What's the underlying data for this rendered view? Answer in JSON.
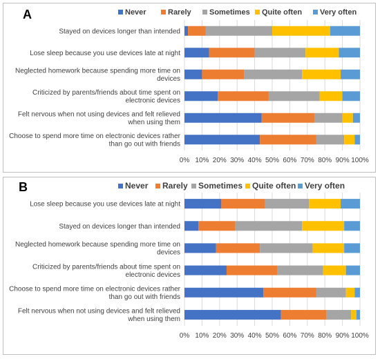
{
  "categories_legend": [
    "Never",
    "Rarely",
    "Sometimes",
    "Quite often",
    "Very often"
  ],
  "colors": {
    "never": "#4472c4",
    "rarely": "#ed7d31",
    "sometimes": "#a5a5a5",
    "quite_often": "#ffc000",
    "very_often": "#5b9bd5",
    "grid": "#d9d9d9",
    "text": "#404040"
  },
  "chart_data": [
    {
      "type": "bar",
      "orientation": "horizontal-stacked-100",
      "panel_label": "A",
      "categories": [
        "Stayed on devices longer than intended",
        "Lose sleep because you use devices late at night",
        "Neglected homework because spending more time on devices",
        "Criticized by parents/friends about time spent on electronic devices",
        "Felt nervous when not using devices and felt relieved when using them",
        "Choose to spend more time on electronic devices rather than go out with friends"
      ],
      "category_lines": [
        [
          "Stayed on devices longer than intended"
        ],
        [
          "Lose sleep because you use devices late at night"
        ],
        [
          "Neglected homework because spending more time on",
          "devices"
        ],
        [
          "Criticized by parents/friends about time spent on",
          "electronic devices"
        ],
        [
          "Felt nervous when not using devices and felt relieved",
          "when using them"
        ],
        [
          "Choose to spend more time on electronic devices rather",
          "than go out with friends"
        ]
      ],
      "series": [
        {
          "name": "Never",
          "values": [
            2,
            14,
            10,
            19,
            44,
            43
          ]
        },
        {
          "name": "Rarely",
          "values": [
            10,
            26,
            24,
            29,
            30,
            32
          ]
        },
        {
          "name": "Sometimes",
          "values": [
            38,
            29,
            33,
            29,
            16,
            16
          ]
        },
        {
          "name": "Quite often",
          "values": [
            33,
            19,
            22,
            13,
            6,
            6
          ]
        },
        {
          "name": "Very often",
          "values": [
            17,
            12,
            11,
            10,
            4,
            3
          ]
        }
      ],
      "xlim": [
        0,
        100
      ],
      "xticks": [
        "0%",
        "10%",
        "20%",
        "30%",
        "40%",
        "50%",
        "60%",
        "70%",
        "80%",
        "90%",
        "100%"
      ],
      "grid": true,
      "legend_position": "top"
    },
    {
      "type": "bar",
      "orientation": "horizontal-stacked-100",
      "panel_label": "B",
      "categories": [
        "Lose sleep because you use devices late at night",
        "Stayed on devices longer than intended",
        "Neglected homework because spending more time on devices",
        "Criticized by parents/friends about time spent on electronic devices",
        "Choose to spend more time on electronic devices rather than go out with friends",
        "Felt nervous when not using devices and felt relieved when using them"
      ],
      "category_lines": [
        [
          "Lose sleep because you use devices late at night"
        ],
        [
          "Stayed on devices longer than intended"
        ],
        [
          "Neglected homework because spending more time on",
          "devices"
        ],
        [
          "Criticized by parents/friends about time spent on",
          "electronic devices"
        ],
        [
          "Choose to spend more time on electronic devices rather",
          "than go out with friends"
        ],
        [
          "Felt nervous when not using devices and felt relieved",
          "when using them"
        ]
      ],
      "series": [
        {
          "name": "Never",
          "values": [
            21,
            8,
            18,
            24,
            45,
            55
          ]
        },
        {
          "name": "Rarely",
          "values": [
            25,
            21,
            25,
            29,
            30,
            26
          ]
        },
        {
          "name": "Sometimes",
          "values": [
            25,
            38,
            30,
            26,
            17,
            14
          ]
        },
        {
          "name": "Quite often",
          "values": [
            18,
            24,
            18,
            13,
            5,
            3
          ]
        },
        {
          "name": "Very often",
          "values": [
            11,
            9,
            9,
            8,
            3,
            2
          ]
        }
      ],
      "xlim": [
        0,
        100
      ],
      "xticks": [
        "0%",
        "10%",
        "20%",
        "30%",
        "40%",
        "50%",
        "60%",
        "70%",
        "80%",
        "90%",
        "100%"
      ],
      "grid": true,
      "legend_position": "top"
    }
  ]
}
